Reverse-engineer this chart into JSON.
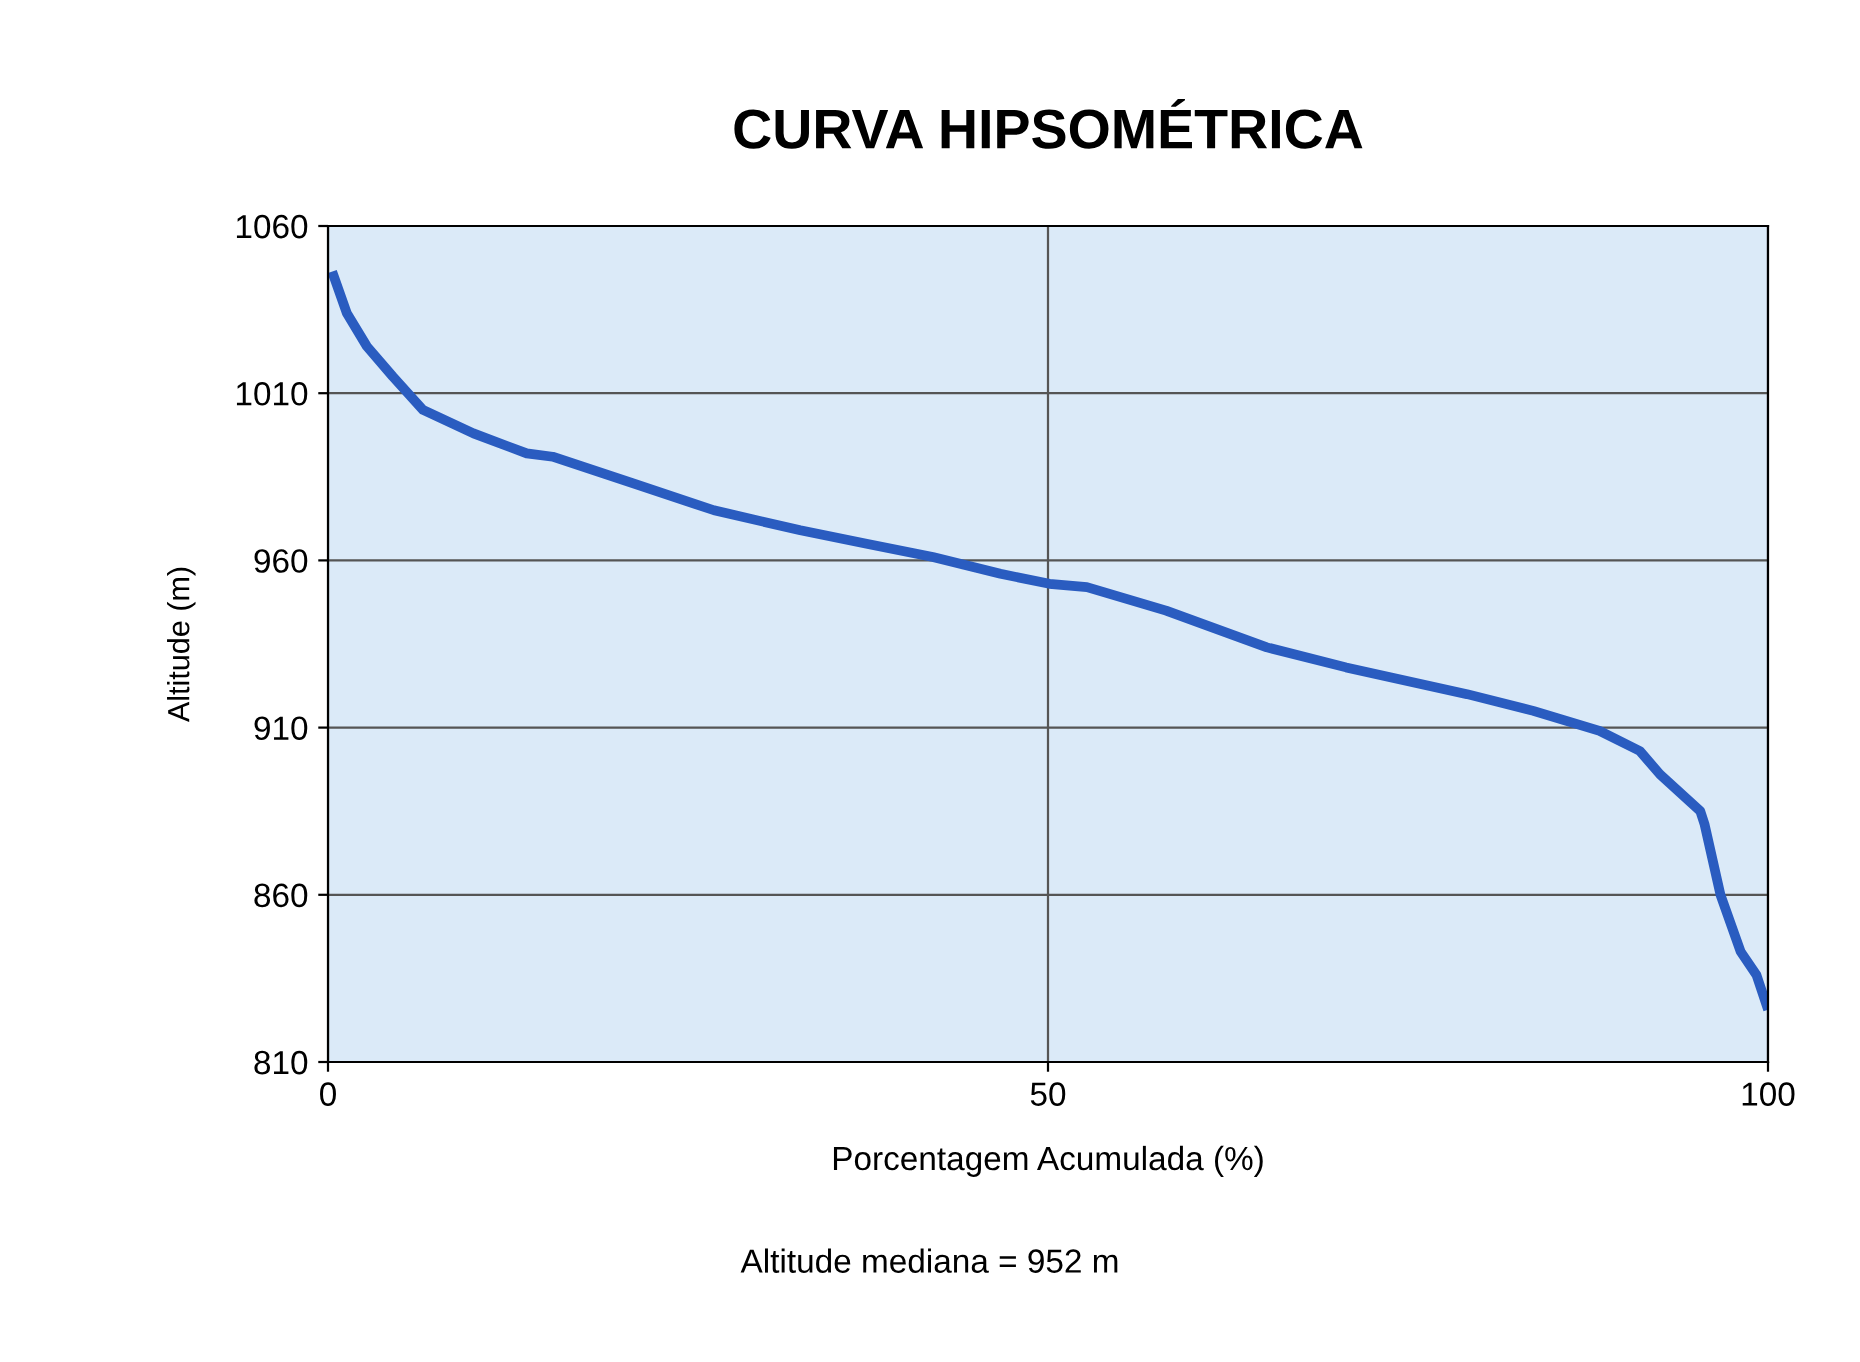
{
  "chart_data": {
    "type": "line",
    "title": "CURVA HIPSOMÉTRICA",
    "xlabel": "Porcentagem Acumulada (%)",
    "ylabel": "Altitude (m)",
    "annotations": [
      "Altitude mediana = 952 m"
    ],
    "series": [
      {
        "color": "#2a5cc0",
        "x": [
          0.4,
          1.3,
          2.7,
          4.5,
          6.6,
          10.1,
          13.8,
          15.6,
          21.2,
          26.8,
          32.8,
          37.4,
          42,
          46.7,
          50.1,
          52.7,
          58.2,
          65.2,
          70.7,
          79.1,
          83.7,
          88.3,
          91.1,
          92.5,
          95.3,
          95.6,
          96.7,
          98.1,
          99.2,
          99.9
        ],
        "values": [
          1045,
          1034,
          1024,
          1015,
          1005,
          998,
          992,
          991,
          983,
          975,
          969,
          965,
          961,
          956,
          953,
          952,
          945,
          934,
          928,
          920,
          915,
          909,
          903,
          896,
          885,
          881,
          860,
          843,
          836,
          827
        ]
      }
    ],
    "xlim": [
      0,
      100
    ],
    "xticks": [
      0,
      50,
      100
    ],
    "ylim": [
      810,
      1060
    ],
    "yticks": [
      810,
      860,
      910,
      960,
      1010,
      1060
    ],
    "grid": true,
    "marker": "none",
    "line_style": "solid"
  }
}
